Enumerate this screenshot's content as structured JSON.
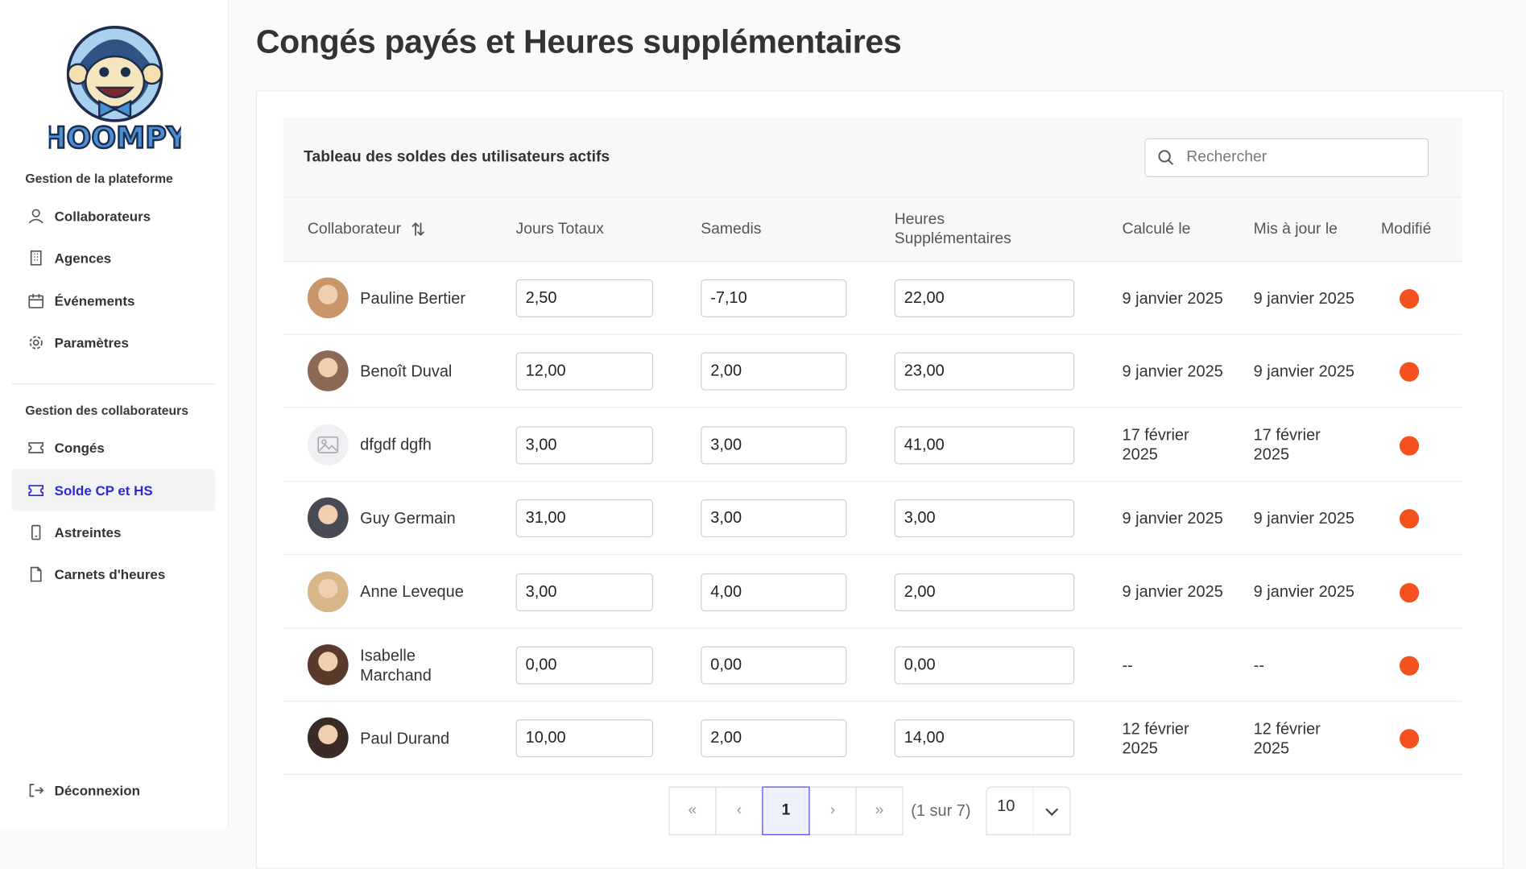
{
  "brand": {
    "name": "HOOMPY"
  },
  "sidebar": {
    "section1": "Gestion de la plateforme",
    "items1": [
      {
        "label": "Collaborateurs",
        "icon": "user-icon"
      },
      {
        "label": "Agences",
        "icon": "building-icon"
      },
      {
        "label": "Événements",
        "icon": "calendar-icon"
      },
      {
        "label": "Paramètres",
        "icon": "gear-icon"
      }
    ],
    "section2": "Gestion des collaborateurs",
    "items2": [
      {
        "label": "Congés",
        "icon": "ticket-icon"
      },
      {
        "label": "Solde CP et HS",
        "icon": "ticket-icon",
        "active": true
      },
      {
        "label": "Astreintes",
        "icon": "phone-icon"
      },
      {
        "label": "Carnets d'heures",
        "icon": "file-icon"
      }
    ],
    "logout": "Déconnexion"
  },
  "page": {
    "title": "Congés payés et Heures supplémentaires"
  },
  "table": {
    "title": "Tableau des soldes des utilisateurs actifs",
    "search_placeholder": "Rechercher",
    "columns": [
      "Collaborateur",
      "Jours Totaux",
      "Samedis",
      "Heures Supplémentaires",
      "Calculé le",
      "Mis à jour le",
      "Modifié"
    ],
    "rows": [
      {
        "name": "Pauline Bertier",
        "jours": "2,50",
        "samedis": "-7,10",
        "heures": "22,00",
        "calcule": "9 janvier 2025",
        "maj": "9 janvier 2025",
        "avatar": "#c9966a"
      },
      {
        "name": "Benoît Duval",
        "jours": "12,00",
        "samedis": "2,00",
        "heures": "23,00",
        "calcule": "9 janvier 2025",
        "maj": "9 janvier 2025",
        "avatar": "#8a6a55"
      },
      {
        "name": "dfgdf dgfh",
        "jours": "3,00",
        "samedis": "3,00",
        "heures": "41,00",
        "calcule": "17 février 2025",
        "maj": "17 février 2025",
        "avatar": "placeholder"
      },
      {
        "name": "Guy Germain",
        "jours": "31,00",
        "samedis": "3,00",
        "heures": "3,00",
        "calcule": "9 janvier 2025",
        "maj": "9 janvier 2025",
        "avatar": "#4a4a55"
      },
      {
        "name": "Anne Leveque",
        "jours": "3,00",
        "samedis": "4,00",
        "heures": "2,00",
        "calcule": "9 janvier 2025",
        "maj": "9 janvier 2025",
        "avatar": "#d8b68a"
      },
      {
        "name": "Isabelle Marchand",
        "jours": "0,00",
        "samedis": "0,00",
        "heures": "0,00",
        "calcule": "--",
        "maj": "--",
        "avatar": "#5a3a2a"
      },
      {
        "name": "Paul Durand",
        "jours": "10,00",
        "samedis": "2,00",
        "heures": "14,00",
        "calcule": "12 février 2025",
        "maj": "12 février 2025",
        "avatar": "#3a2a25"
      }
    ],
    "modified_color": "#f4511e"
  },
  "pagination": {
    "first": "«",
    "prev": "‹",
    "current": "1",
    "next": "›",
    "last": "»",
    "info": "(1 sur 7)",
    "page_size": "10"
  }
}
